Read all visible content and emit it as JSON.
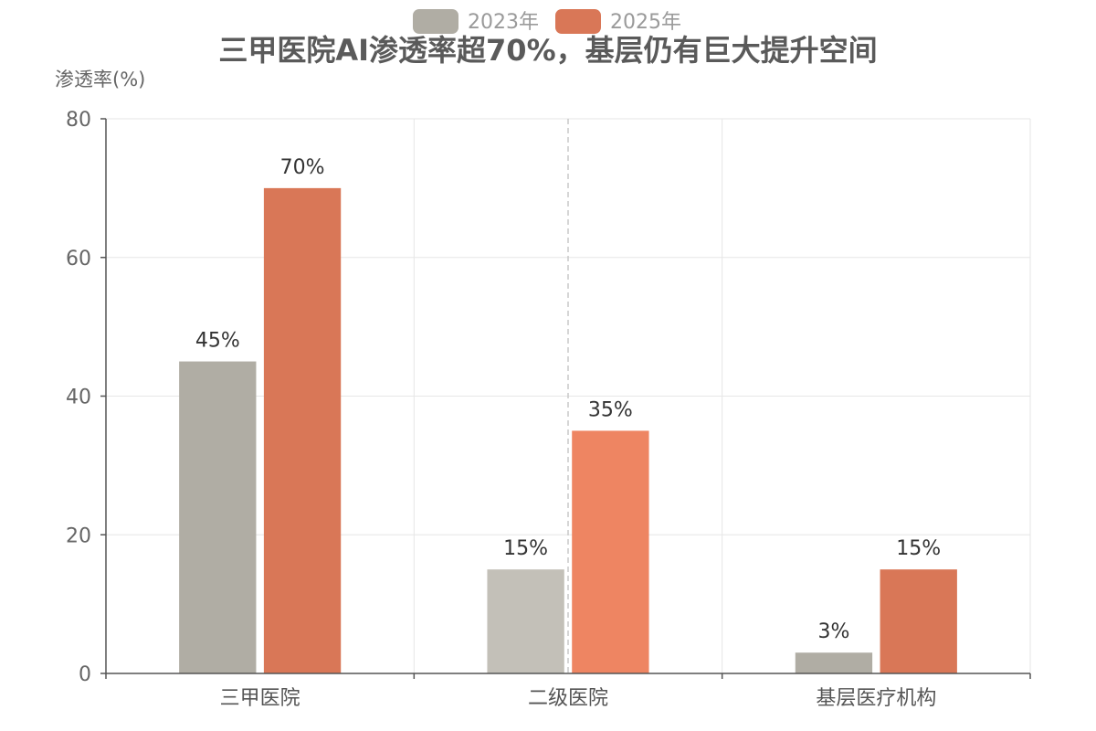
{
  "chart_data": {
    "type": "bar",
    "title": "三甲医院AI渗透率超70%，基层仍有巨大提升空间",
    "ylabel": "渗透率(%)",
    "xlabel": "",
    "categories": [
      "三甲医院",
      "二级医院",
      "基层医疗机构"
    ],
    "series": [
      {
        "name": "2023年",
        "values": [
          45,
          15,
          3
        ],
        "labels": [
          "45%",
          "15%",
          "3%"
        ],
        "color": "#b0ada4"
      },
      {
        "name": "2025年",
        "values": [
          70,
          35,
          15
        ],
        "labels": [
          "70%",
          "35%",
          "15%"
        ],
        "color": "#d97757"
      }
    ],
    "ylim": [
      0,
      80
    ],
    "yticks": [
      0,
      20,
      40,
      60,
      80
    ],
    "grid": true,
    "legend": "top-center"
  }
}
